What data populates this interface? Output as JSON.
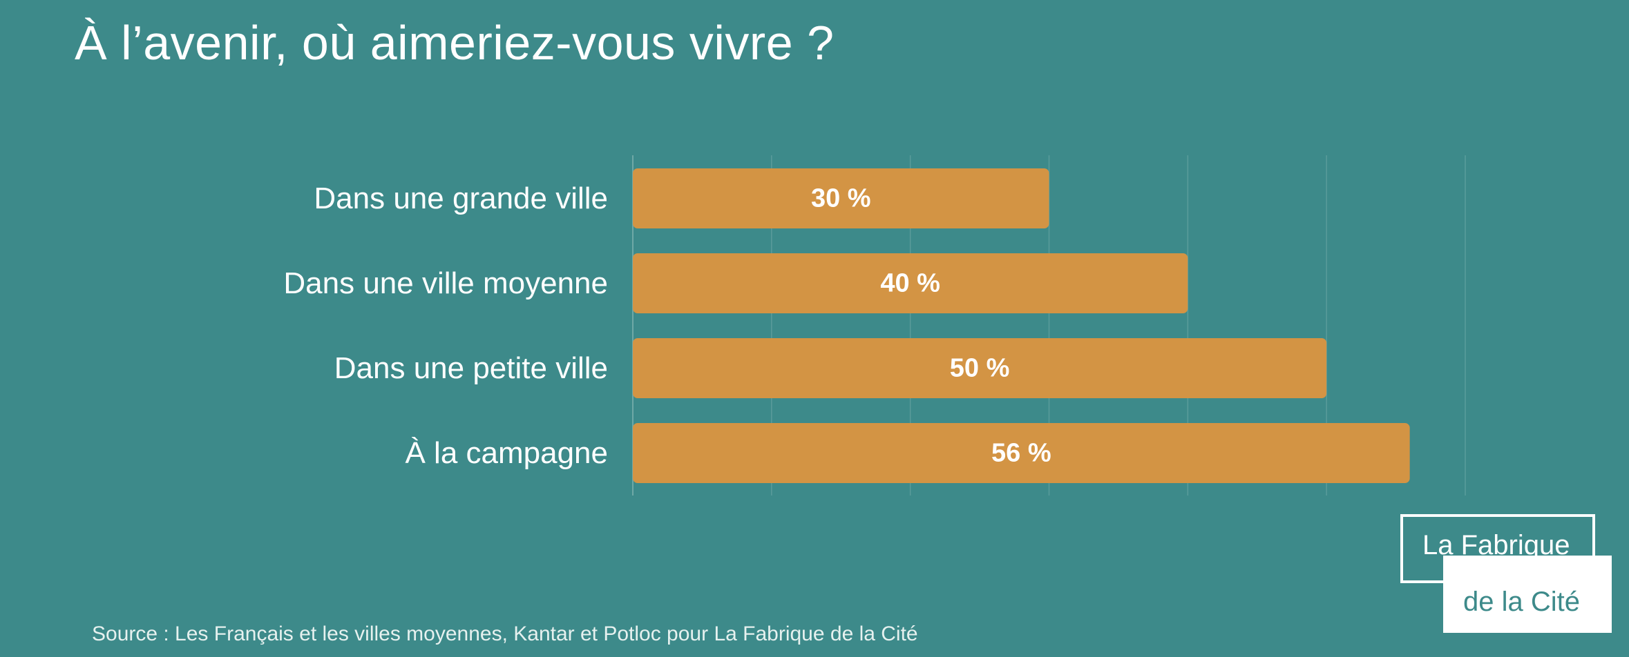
{
  "title": "À l’avenir, où aimeriez-vous vivre ?",
  "source": "Source : Les Français et les villes moyennes, Kantar et Potloc pour La Fabrique de la Cité",
  "logo": {
    "line1": "La Fabrique",
    "line2": "de la Cité"
  },
  "colors": {
    "background": "#3d8a8a",
    "bar": "#d39444",
    "text": "#ffffff"
  },
  "chart_data": {
    "type": "bar",
    "orientation": "horizontal",
    "categories": [
      "Dans une grande ville",
      "Dans une ville moyenne",
      "Dans une petite ville",
      "À la campagne"
    ],
    "values": [
      30,
      40,
      50,
      56
    ],
    "value_labels": [
      "30 %",
      "40 %",
      "50 %",
      "56 %"
    ],
    "xlim": [
      0,
      60
    ],
    "grid": true
  }
}
